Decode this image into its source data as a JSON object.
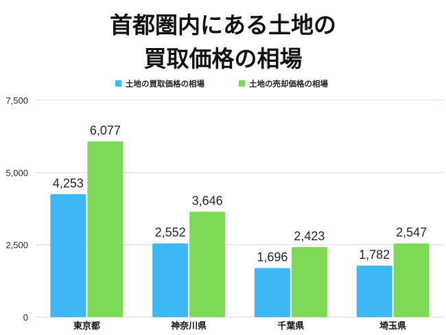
{
  "chart_data": {
    "type": "bar",
    "title_lines": [
      "首都圏内にある土地の",
      "買取価格の相場"
    ],
    "categories": [
      "東京都",
      "神奈川県",
      "千葉県",
      "埼玉県"
    ],
    "series": [
      {
        "name": "土地の買取価格の相場",
        "color": "#3db8f5",
        "values": [
          4253,
          2552,
          1696,
          1782
        ],
        "labels": [
          "4,253",
          "2,552",
          "1,696",
          "1,782"
        ]
      },
      {
        "name": "土地の売却価格の相場",
        "color": "#7ed957",
        "values": [
          6077,
          3646,
          2423,
          2547
        ],
        "labels": [
          "6,077",
          "3,646",
          "2,423",
          "2,547"
        ]
      }
    ],
    "yticks": [
      0,
      2500,
      5000,
      7500
    ],
    "ytick_labels": [
      "0",
      "2,500",
      "5,000",
      "7,500"
    ],
    "ylim": [
      0,
      7500
    ],
    "grid": true,
    "legend_position": "top-center"
  }
}
